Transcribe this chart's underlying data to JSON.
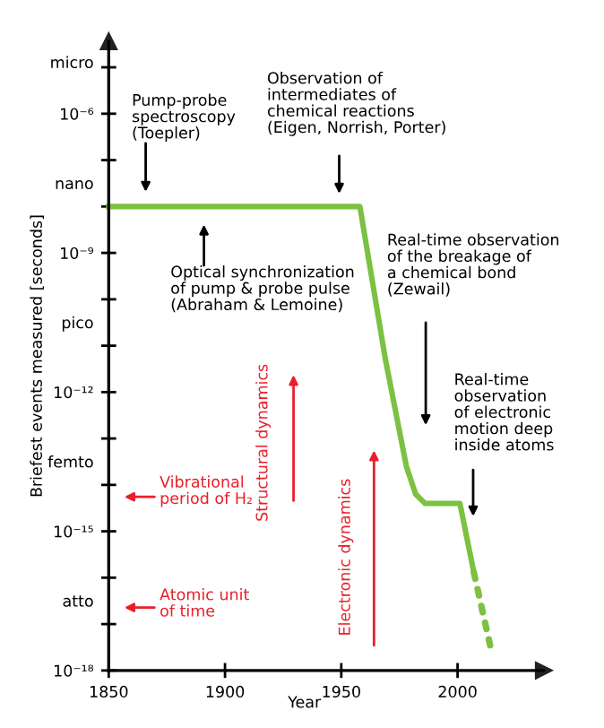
{
  "chart_data": {
    "type": "line",
    "xlabel": "Year",
    "ylabel": "Briefest events measured [seconds]",
    "log": "y",
    "xlim": [
      1850,
      2037
    ],
    "xticks": [
      1850,
      1900,
      1950,
      2000
    ],
    "ylim": [
      1e-18,
      3.6e-05
    ],
    "yticks": [
      {
        "value": 1e-18,
        "label": "10⁻¹⁸"
      },
      {
        "value": 1e-17,
        "label": null
      },
      {
        "value": 1e-16,
        "label": null
      },
      {
        "value": 1e-15,
        "label": "10⁻¹⁵"
      },
      {
        "value": 1e-14,
        "label": null
      },
      {
        "value": 1e-13,
        "label": null
      },
      {
        "value": 1e-12,
        "label": "10⁻¹²"
      },
      {
        "value": 1e-11,
        "label": null
      },
      {
        "value": 1e-10,
        "label": null
      },
      {
        "value": 1e-09,
        "label": "10⁻⁹"
      },
      {
        "value": 1e-08,
        "label": null
      },
      {
        "value": 1e-07,
        "label": null
      },
      {
        "value": 1e-06,
        "label": "10⁻⁶"
      },
      {
        "value": 1e-05,
        "label": null
      },
      {
        "value": 3.2e-17,
        "label": "atto"
      },
      {
        "value": 3.2e-14,
        "label": "femto"
      },
      {
        "value": 3.2e-11,
        "label": "pico"
      },
      {
        "value": 3.2e-08,
        "label": "nano"
      },
      {
        "value": 1.3e-05,
        "label": "micro"
      }
    ],
    "series": [
      {
        "color": "#7dc142",
        "line_style": "solid",
        "x": [
          1850,
          1958,
          1969,
          1978,
          1982,
          1986,
          2001,
          2007
        ],
        "values": [
          1e-08,
          1e-08,
          5e-12,
          2.5e-14,
          6.3e-15,
          4e-15,
          4e-15,
          1.3e-16
        ]
      },
      {
        "color": "#7dc142",
        "line_style": "dotted",
        "x": [
          2007,
          2014
        ],
        "values": [
          1.3e-16,
          3.5e-18
        ]
      }
    ],
    "marker": "none",
    "grid": false,
    "legend": false,
    "annotations": [
      "Pump-probe\nspectroscopy\n(Toepler)",
      "Observation of\nintermediates of\nchemical reactions\n(Eigen, Norrish, Porter)",
      "Optical synchronization\nof pump & probe pulse\n(Abraham & Lemoine)",
      "Real-time observation\nof the breakage of\na chemical bond\n(Zewail)",
      "Real-time\nobservation\nof electronic\nmotion deep\ninside atoms",
      "Vibrational\nperiod of H₂",
      "Atomic unit\nof time",
      "Structural dynamics",
      "Electronic dynamics"
    ]
  }
}
